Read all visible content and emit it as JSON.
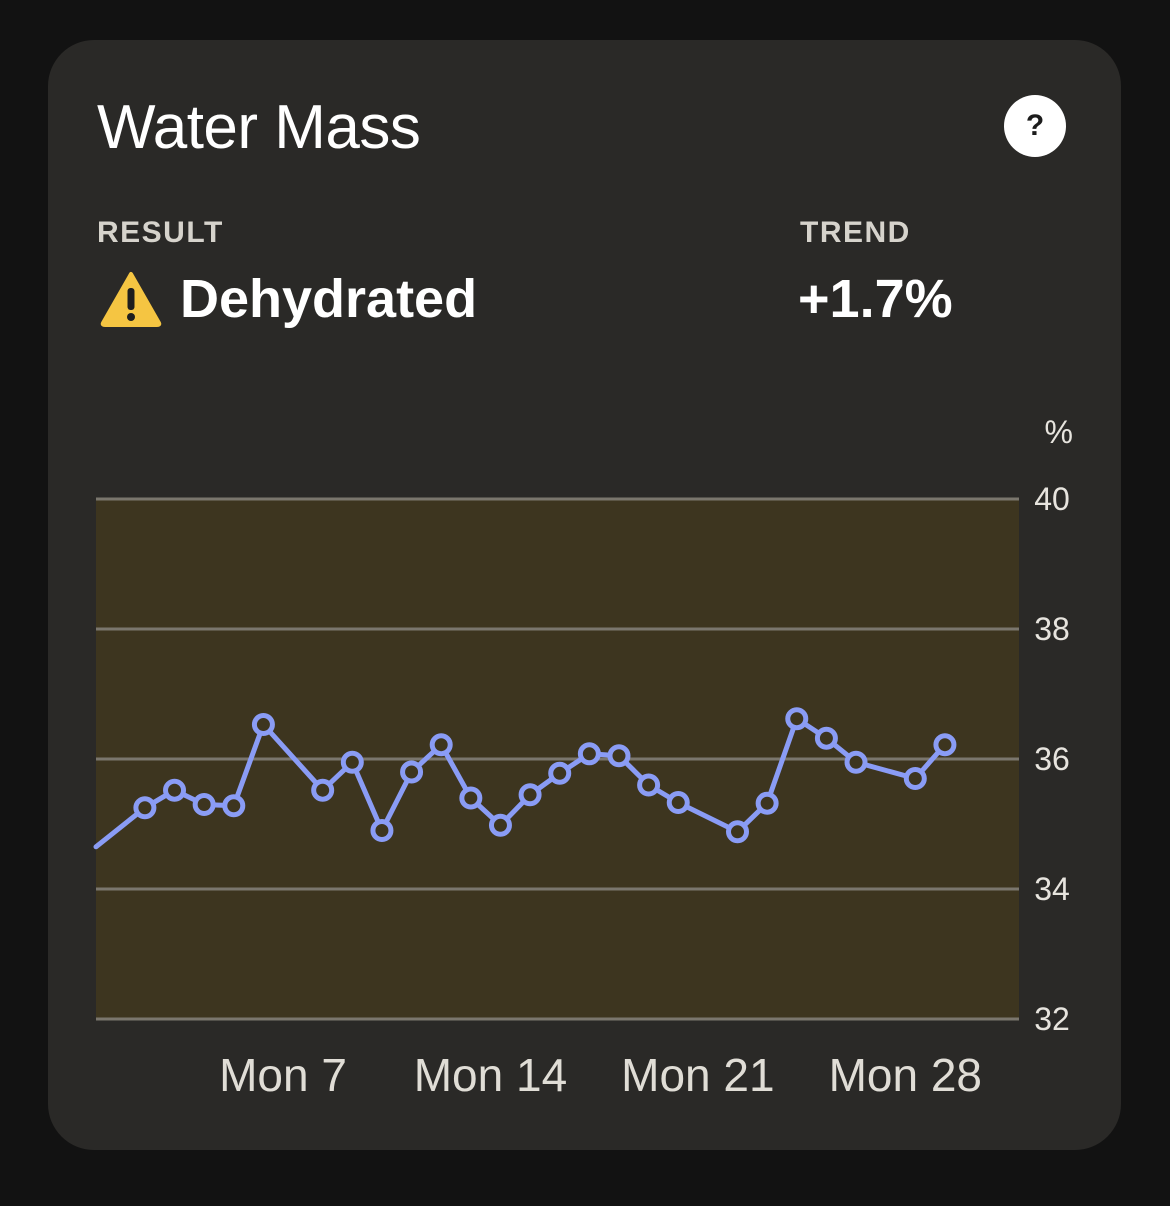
{
  "card": {
    "title": "Water Mass",
    "help_icon": "question-mark-icon",
    "help_glyph": "?"
  },
  "result": {
    "label": "RESULT",
    "value": "Dehydrated",
    "icon": "warning-icon"
  },
  "trend": {
    "label": "TREND",
    "value": "+1.7%"
  },
  "colors": {
    "card_bg": "#2a2927",
    "band": "#3d351f",
    "grid": "#7a766d",
    "line": "#8a9cf5",
    "point_fill": "#3d351f",
    "warning": "#f5c542"
  },
  "chart_data": {
    "type": "line",
    "unit": "%",
    "ylim": [
      32,
      40
    ],
    "yticks": [
      "40",
      "38",
      "36",
      "34",
      "32"
    ],
    "xticks": [
      "Mon 7",
      "Mon 14",
      "Mon 21",
      "Mon 28"
    ],
    "x_tick_days": [
      7,
      14,
      21,
      28
    ],
    "xlim": [
      0.35,
      31.5
    ],
    "grid": true,
    "series": [
      {
        "x": [
          2,
          3,
          4,
          5,
          6,
          8,
          9,
          10,
          11,
          12,
          13,
          14,
          15,
          16,
          17,
          18,
          19,
          20,
          22,
          23,
          24,
          25,
          26,
          28,
          29
        ],
        "values": [
          35.25,
          35.52,
          35.3,
          35.28,
          36.53,
          35.52,
          35.95,
          34.9,
          35.8,
          36.22,
          35.4,
          34.98,
          35.45,
          35.78,
          36.08,
          36.05,
          35.6,
          35.33,
          34.88,
          35.32,
          36.62,
          36.32,
          35.95,
          35.7,
          36.22
        ]
      }
    ],
    "leading_value": 34.65
  }
}
